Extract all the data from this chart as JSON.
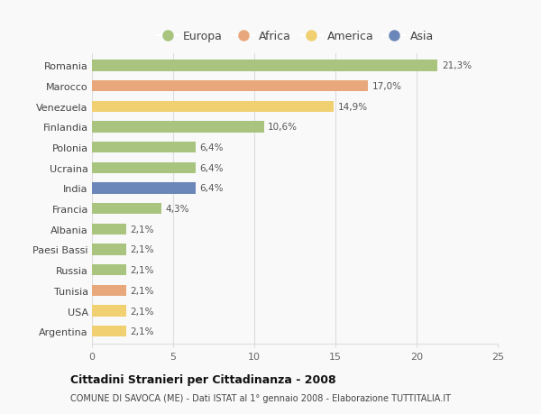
{
  "categories": [
    "Romania",
    "Marocco",
    "Venezuela",
    "Finlandia",
    "Polonia",
    "Ucraina",
    "India",
    "Francia",
    "Albania",
    "Paesi Bassi",
    "Russia",
    "Tunisia",
    "USA",
    "Argentina"
  ],
  "values": [
    21.3,
    17.0,
    14.9,
    10.6,
    6.4,
    6.4,
    6.4,
    4.3,
    2.1,
    2.1,
    2.1,
    2.1,
    2.1,
    2.1
  ],
  "labels": [
    "21,3%",
    "17,0%",
    "14,9%",
    "10,6%",
    "6,4%",
    "6,4%",
    "6,4%",
    "4,3%",
    "2,1%",
    "2,1%",
    "2,1%",
    "2,1%",
    "2,1%",
    "2,1%"
  ],
  "bar_colors": [
    "#a8c47e",
    "#e8a87c",
    "#f0d070",
    "#a8c47e",
    "#a8c47e",
    "#a8c47e",
    "#6b86b8",
    "#a8c47e",
    "#a8c47e",
    "#a8c47e",
    "#a8c47e",
    "#e8a87c",
    "#f0d070",
    "#f0d070"
  ],
  "legend_labels": [
    "Europa",
    "Africa",
    "America",
    "Asia"
  ],
  "legend_colors": [
    "#a8c47e",
    "#e8a87c",
    "#f0d070",
    "#6b86b8"
  ],
  "xlim": [
    0,
    25
  ],
  "xticks": [
    0,
    5,
    10,
    15,
    20,
    25
  ],
  "title": "Cittadini Stranieri per Cittadinanza - 2008",
  "subtitle": "COMUNE DI SAVOCA (ME) - Dati ISTAT al 1° gennaio 2008 - Elaborazione TUTTITALIA.IT",
  "background_color": "#f9f9f9",
  "grid_color": "#dddddd",
  "bar_height": 0.55
}
